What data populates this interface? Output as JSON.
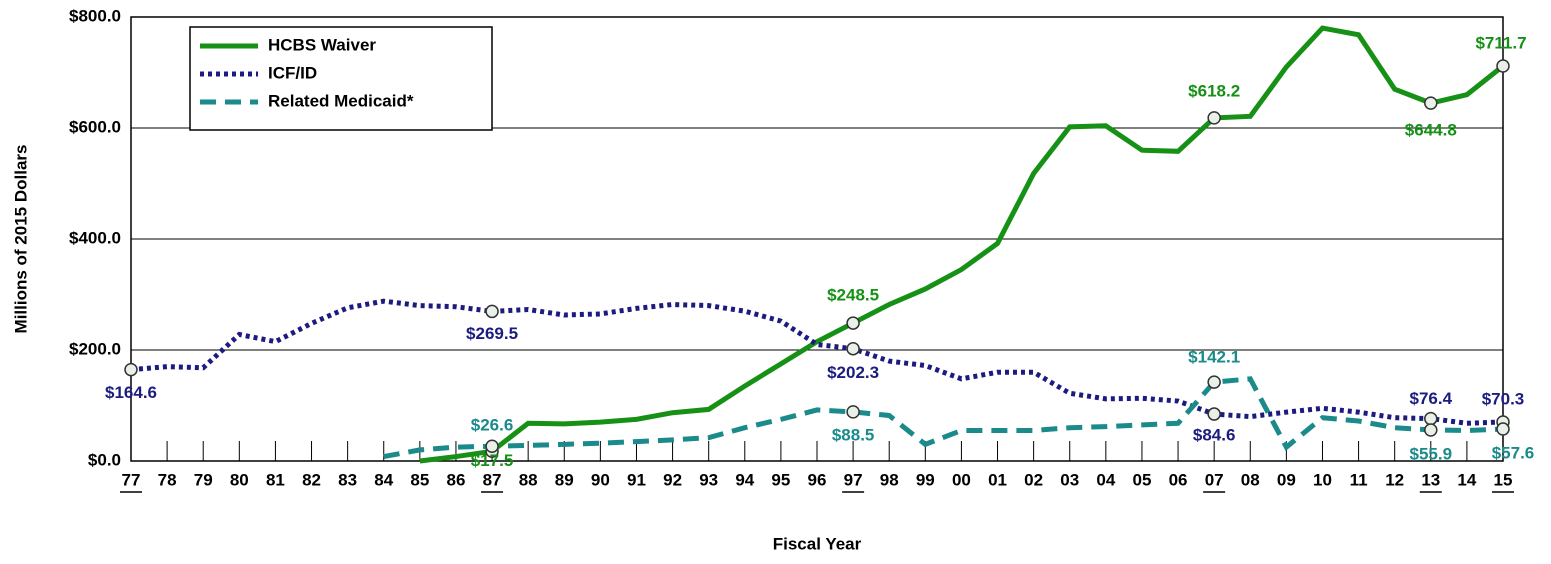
{
  "chart_data": {
    "type": "line",
    "y_label": "Millions of 2015 Dollars",
    "x_label": "Fiscal Year",
    "categories": [
      "77",
      "78",
      "79",
      "80",
      "81",
      "82",
      "83",
      "84",
      "85",
      "86",
      "87",
      "88",
      "89",
      "90",
      "91",
      "92",
      "93",
      "94",
      "95",
      "96",
      "97",
      "98",
      "99",
      "00",
      "01",
      "02",
      "03",
      "04",
      "05",
      "06",
      "07",
      "08",
      "09",
      "10",
      "11",
      "12",
      "13",
      "14",
      "15"
    ],
    "ylim": [
      0,
      800
    ],
    "yticks": [
      {
        "value": 0,
        "label": "$0.0"
      },
      {
        "value": 200,
        "label": "$200.0"
      },
      {
        "value": 400,
        "label": "$400.0"
      },
      {
        "value": 600,
        "label": "$600.0"
      },
      {
        "value": 800,
        "label": "$800.0"
      }
    ],
    "grid": true,
    "legend": "upper left",
    "series": [
      {
        "name": "HCBS Waiver",
        "color": "#169116",
        "style": "solid",
        "values": [
          null,
          null,
          null,
          null,
          null,
          null,
          null,
          null,
          0,
          8,
          17.5,
          68,
          67,
          70,
          75,
          87,
          93,
          135,
          175,
          215,
          248.5,
          282,
          310,
          345,
          392,
          518,
          602,
          604,
          560,
          558,
          618.2,
          621,
          710,
          780,
          768,
          670,
          644.8,
          660,
          711.7
        ],
        "value_labels": [
          null,
          null,
          null,
          null,
          null,
          null,
          null,
          null,
          null,
          null,
          "$17.5",
          null,
          null,
          null,
          null,
          null,
          null,
          null,
          null,
          null,
          "$248.5",
          null,
          null,
          null,
          null,
          null,
          null,
          null,
          null,
          null,
          "$618.2",
          null,
          null,
          null,
          null,
          null,
          "$644.8",
          null,
          "$711.7"
        ]
      },
      {
        "name": "ICF/ID",
        "color": "#1c1c80",
        "style": "dotted",
        "values": [
          164.6,
          170,
          168,
          228,
          215,
          248,
          276,
          288,
          280,
          278,
          269.5,
          273,
          263,
          265,
          275,
          282,
          280,
          270,
          252,
          210,
          202.3,
          180,
          172,
          148,
          160,
          160,
          122,
          112,
          113,
          108,
          84.6,
          80,
          88,
          95,
          88,
          78,
          76.4,
          68,
          70.3
        ],
        "value_labels": [
          "$164.6",
          null,
          null,
          null,
          null,
          null,
          null,
          null,
          null,
          null,
          "$269.5",
          null,
          null,
          null,
          null,
          null,
          null,
          null,
          null,
          null,
          "$202.3",
          null,
          null,
          null,
          null,
          null,
          null,
          null,
          null,
          null,
          "$84.6",
          null,
          null,
          null,
          null,
          null,
          "$76.4",
          null,
          "$70.3"
        ]
      },
      {
        "name": "Related Medicaid*",
        "color": "#1a8a8a",
        "style": "dashed",
        "values": [
          null,
          null,
          null,
          null,
          null,
          null,
          null,
          8,
          20,
          25,
          26.6,
          28,
          30,
          32,
          35,
          38,
          42,
          60,
          75,
          92,
          88.5,
          82,
          30,
          55,
          55,
          55,
          60,
          62,
          65,
          68,
          142.1,
          148,
          25,
          78,
          72,
          60,
          55.9,
          55,
          57.6
        ],
        "value_labels": [
          null,
          null,
          null,
          null,
          null,
          null,
          null,
          null,
          null,
          null,
          "$26.6",
          null,
          null,
          null,
          null,
          null,
          null,
          null,
          null,
          null,
          "$88.5",
          null,
          null,
          null,
          null,
          null,
          null,
          null,
          null,
          null,
          "$142.1",
          null,
          null,
          null,
          null,
          null,
          "$55.9",
          null,
          "$57.6"
        ]
      }
    ]
  }
}
